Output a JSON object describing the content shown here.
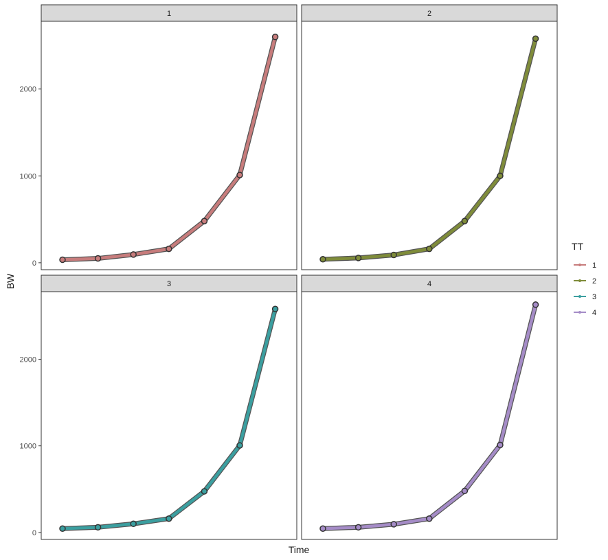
{
  "chart_data": {
    "type": "line",
    "xlabel": "Time",
    "ylabel": "BW",
    "ylim": [
      -80,
      2780
    ],
    "yticks": [
      0,
      1000,
      2000
    ],
    "x": [
      1,
      2,
      3,
      4,
      5,
      6,
      7
    ],
    "legend": {
      "title": "TT",
      "position": "right"
    },
    "panels": [
      {
        "label": "1",
        "color": "#c77c7c",
        "values": [
          35,
          50,
          95,
          160,
          480,
          1010,
          2600
        ]
      },
      {
        "label": "2",
        "color": "#7f8c3a",
        "values": [
          40,
          55,
          90,
          160,
          480,
          1000,
          2580
        ]
      },
      {
        "label": "3",
        "color": "#3b9fa0",
        "values": [
          45,
          60,
          100,
          160,
          475,
          1005,
          2580
        ]
      },
      {
        "label": "4",
        "color": "#a58cc7",
        "values": [
          45,
          60,
          95,
          160,
          480,
          1010,
          2630
        ]
      }
    ],
    "grid": false
  }
}
